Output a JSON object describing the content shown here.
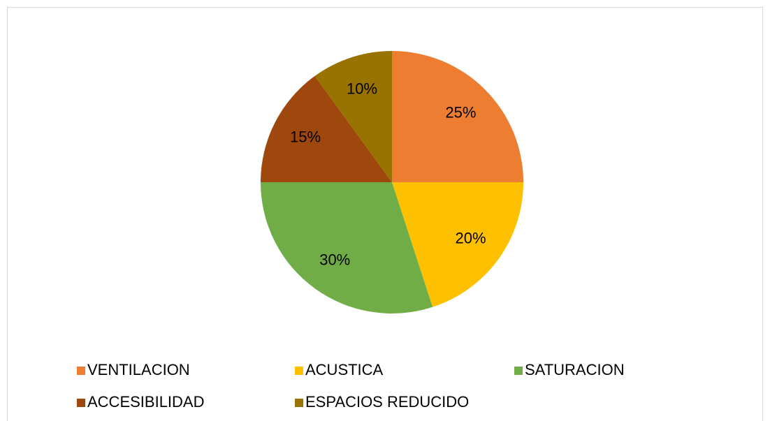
{
  "chart_data": {
    "type": "pie",
    "categories": [
      "VENTILACION",
      "ACUSTICA",
      "SATURACION",
      "ACCESIBILIDAD",
      "ESPACIOS REDUCIDO"
    ],
    "values": [
      25,
      20,
      30,
      15,
      10
    ],
    "value_labels": [
      "25%",
      "20%",
      "30%",
      "15%",
      "10%"
    ],
    "colors": [
      "#ED7D31",
      "#FFC000",
      "#70AD47",
      "#9E480E",
      "#997300"
    ]
  }
}
